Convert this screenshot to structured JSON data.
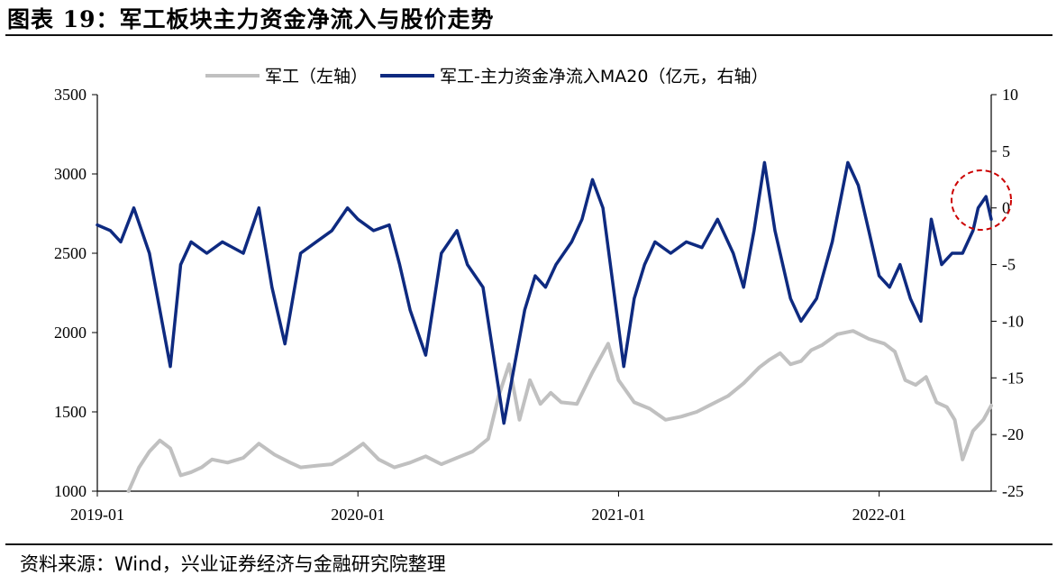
{
  "figure": {
    "title": "图表 19：军工板块主力资金净流入与股价走势",
    "source": "资料来源：Wind，兴业证券经济与金融研究院整理"
  },
  "chart_data": {
    "type": "line",
    "title": "图表 19：军工板块主力资金净流入与股价走势",
    "x_ticks": [
      "2019-01",
      "2020-01",
      "2021-01",
      "2022-01"
    ],
    "left_axis": {
      "label": "军工（左轴）",
      "ylim": [
        1000,
        3500
      ],
      "ticks": [
        1000,
        1500,
        2000,
        2500,
        3000,
        3500
      ]
    },
    "right_axis": {
      "label": "亿元，右轴",
      "ylim": [
        -25,
        10
      ],
      "ticks": [
        -25,
        -20,
        -15,
        -10,
        -5,
        0,
        5,
        10
      ]
    },
    "legend_position": "top-center",
    "colors": {
      "index": "#c0c0c0",
      "flow": "#0e2a80",
      "highlight": "#cc0000"
    },
    "series": [
      {
        "name": "军工（左轴）",
        "axis": "left",
        "color": "#c0c0c0",
        "x": [
          2019.12,
          2019.16,
          2019.2,
          2019.24,
          2019.28,
          2019.32,
          2019.36,
          2019.4,
          2019.44,
          2019.5,
          2019.56,
          2019.62,
          2019.68,
          2019.74,
          2019.78,
          2019.84,
          2019.9,
          2019.96,
          2020.02,
          2020.08,
          2020.14,
          2020.2,
          2020.26,
          2020.32,
          2020.38,
          2020.44,
          2020.5,
          2020.54,
          2020.58,
          2020.62,
          2020.66,
          2020.7,
          2020.74,
          2020.78,
          2020.84,
          2020.9,
          2020.96,
          2021.0,
          2021.06,
          2021.12,
          2021.18,
          2021.24,
          2021.3,
          2021.36,
          2021.42,
          2021.48,
          2021.54,
          2021.58,
          2021.62,
          2021.66,
          2021.7,
          2021.74,
          2021.78,
          2021.84,
          2021.9,
          2021.96,
          2022.02,
          2022.06,
          2022.1,
          2022.14,
          2022.18,
          2022.22,
          2022.26,
          2022.29,
          2022.32,
          2022.36,
          2022.4,
          2022.43
        ],
        "values": [
          1000,
          1150,
          1250,
          1320,
          1270,
          1100,
          1120,
          1150,
          1200,
          1180,
          1210,
          1300,
          1230,
          1180,
          1150,
          1160,
          1170,
          1230,
          1300,
          1200,
          1150,
          1180,
          1220,
          1170,
          1210,
          1250,
          1330,
          1600,
          1800,
          1450,
          1700,
          1550,
          1620,
          1560,
          1550,
          1750,
          1930,
          1700,
          1560,
          1520,
          1450,
          1470,
          1500,
          1550,
          1600,
          1680,
          1780,
          1830,
          1870,
          1800,
          1820,
          1890,
          1920,
          1990,
          2010,
          1960,
          1930,
          1880,
          1700,
          1670,
          1720,
          1560,
          1530,
          1450,
          1200,
          1380,
          1450,
          1540
        ]
      },
      {
        "name": "军工-主力资金净流入MA20（亿元，右轴）",
        "axis": "right",
        "color": "#0e2a80",
        "x": [
          2019.0,
          2019.05,
          2019.09,
          2019.14,
          2019.2,
          2019.24,
          2019.28,
          2019.32,
          2019.36,
          2019.42,
          2019.48,
          2019.56,
          2019.62,
          2019.67,
          2019.72,
          2019.78,
          2019.84,
          2019.9,
          2019.96,
          2020.0,
          2020.06,
          2020.12,
          2020.16,
          2020.2,
          2020.26,
          2020.32,
          2020.38,
          2020.42,
          2020.48,
          2020.52,
          2020.56,
          2020.6,
          2020.64,
          2020.68,
          2020.72,
          2020.76,
          2020.82,
          2020.86,
          2020.9,
          2020.94,
          2021.02,
          2021.06,
          2021.1,
          2021.14,
          2021.2,
          2021.26,
          2021.32,
          2021.38,
          2021.44,
          2021.48,
          2021.52,
          2021.56,
          2021.6,
          2021.66,
          2021.7,
          2021.76,
          2021.82,
          2021.88,
          2021.92,
          2021.96,
          2022.0,
          2022.04,
          2022.08,
          2022.12,
          2022.16,
          2022.2,
          2022.24,
          2022.28,
          2022.32,
          2022.36,
          2022.38,
          2022.41,
          2022.43
        ],
        "values": [
          -1.5,
          -2.0,
          -3.0,
          0.0,
          -4.0,
          -9.0,
          -14.0,
          -5.0,
          -3.0,
          -4.0,
          -3.0,
          -4.0,
          0.0,
          -7.0,
          -12.0,
          -4.0,
          -3.0,
          -2.0,
          0.0,
          -1.0,
          -2.0,
          -1.5,
          -5.0,
          -9.0,
          -13.0,
          -4.0,
          -2.0,
          -5.0,
          -7.0,
          -13.0,
          -19.0,
          -14.0,
          -9.0,
          -6.0,
          -7.0,
          -5.0,
          -3.0,
          -1.0,
          2.5,
          0.0,
          -14.0,
          -8.0,
          -5.0,
          -3.0,
          -4.0,
          -3.0,
          -3.5,
          -1.0,
          -4.0,
          -7.0,
          -2.0,
          4.0,
          -2.0,
          -8.0,
          -10.0,
          -8.0,
          -3.0,
          4.0,
          2.0,
          -2.0,
          -6.0,
          -7.0,
          -5.0,
          -8.0,
          -10.0,
          -1.0,
          -5.0,
          -4.0,
          -4.0,
          -2.0,
          0.0,
          1.0,
          -1.0
        ]
      }
    ]
  }
}
